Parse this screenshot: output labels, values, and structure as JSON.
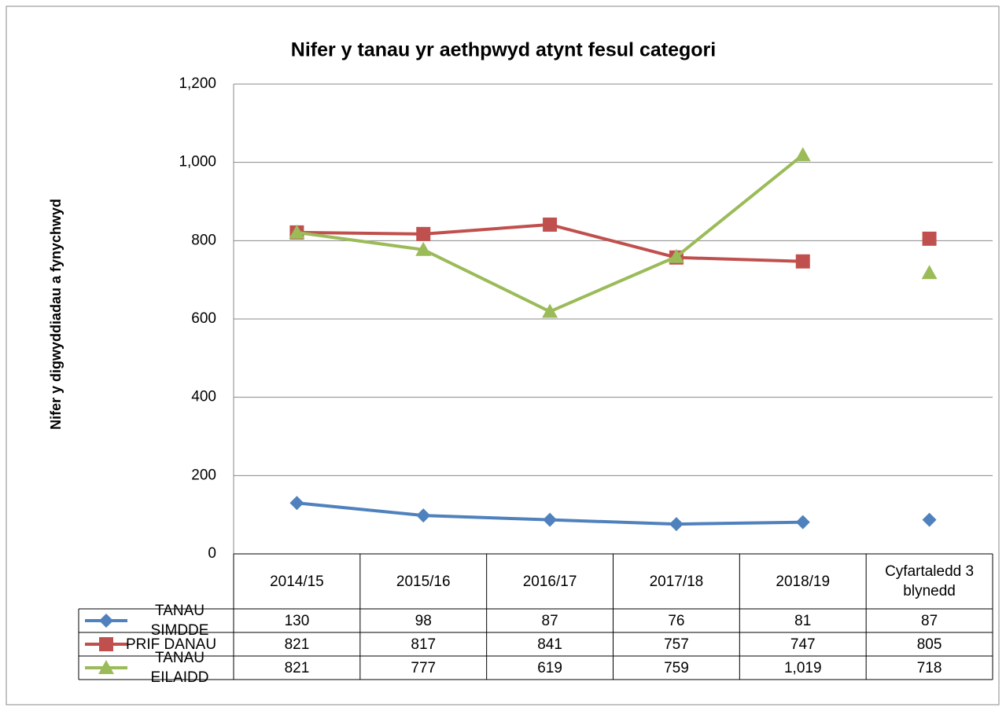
{
  "chart_data": {
    "type": "line",
    "title": "Nifer y tanau yr aethpwyd atynt fesul categori",
    "y_label": "Nifer y digwyddiadau a fynychwyd",
    "categories": [
      "2014/15",
      "2015/16",
      "2016/17",
      "2017/18",
      "2018/19",
      "Cyfartaledd 3 blynedd"
    ],
    "series": [
      {
        "name": "TANAU SIMDDE",
        "color": "#4f81bd",
        "marker": "diamond",
        "values": [
          130,
          98,
          87,
          76,
          81,
          87
        ]
      },
      {
        "name": "PRIF DANAU",
        "color": "#c0504d",
        "marker": "square",
        "values": [
          821,
          817,
          841,
          757,
          747,
          805
        ]
      },
      {
        "name": "TANAU EILAIDD",
        "color": "#9bbb59",
        "marker": "triangle",
        "values": [
          821,
          777,
          619,
          759,
          1019,
          718
        ],
        "value_labels": [
          "821",
          "777",
          "619",
          "759",
          "1,019",
          "718"
        ]
      }
    ],
    "ylim": [
      0,
      1200
    ],
    "yticks": [
      0,
      200,
      400,
      600,
      800,
      {
        "value": 1000,
        "label": "1,000"
      },
      {
        "value": 1200,
        "label": "1,200"
      }
    ],
    "grid": true,
    "data_table": true
  }
}
